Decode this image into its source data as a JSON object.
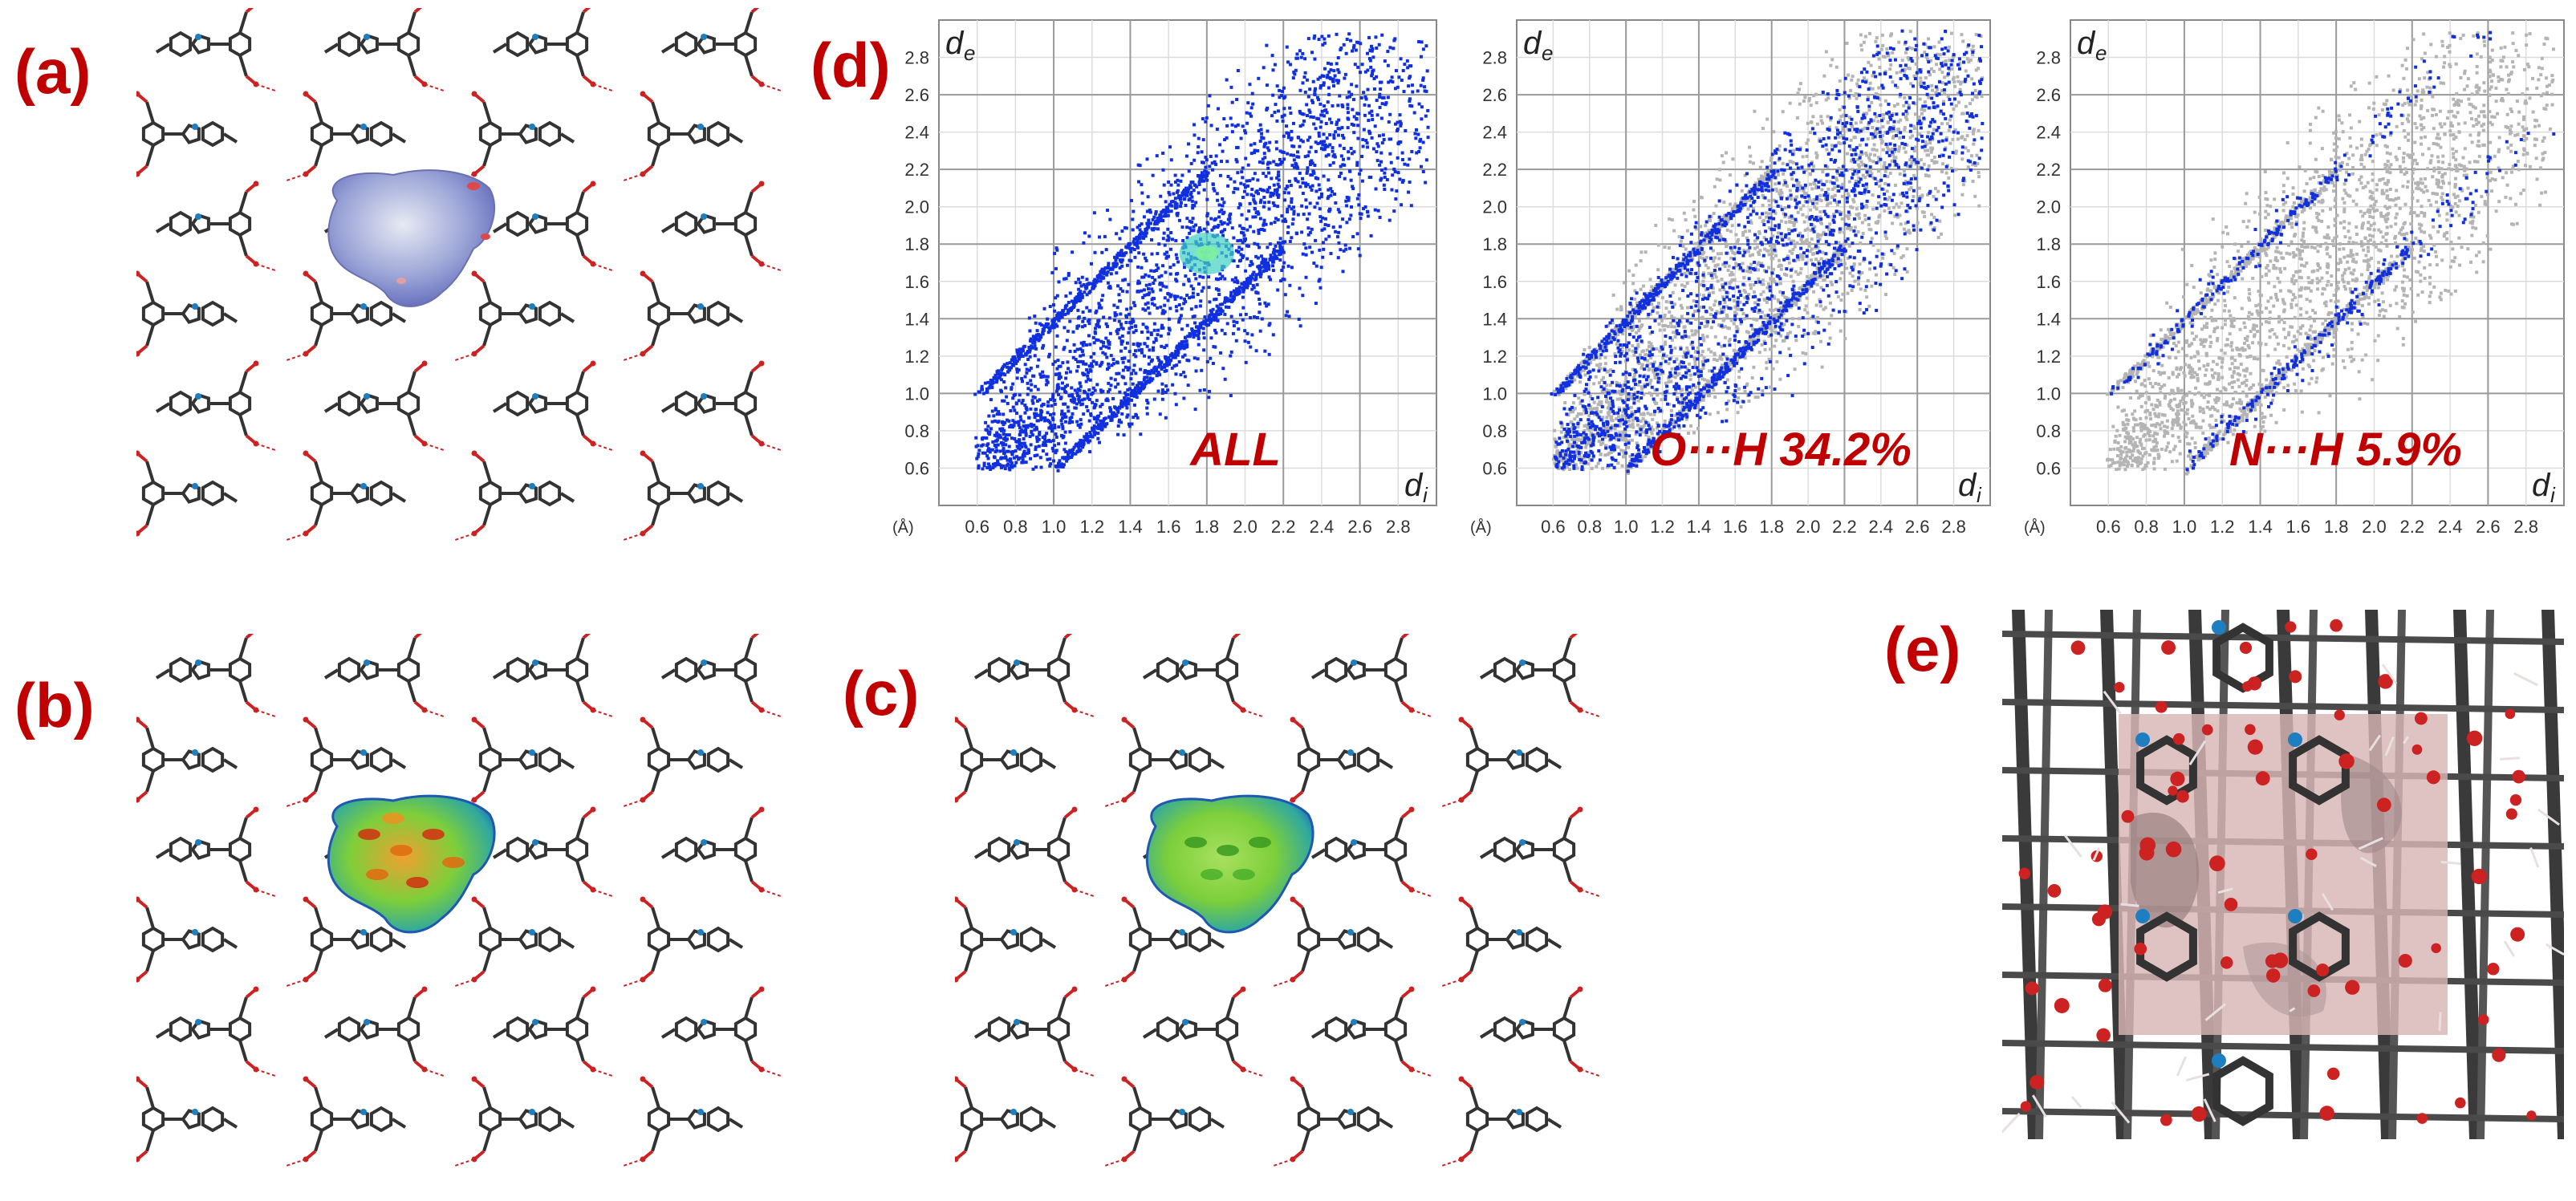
{
  "panels": {
    "a": "(a)",
    "b": "(b)",
    "c": "(c)",
    "d": "(d)",
    "e": "(e)"
  },
  "colors": {
    "label": "#c00000",
    "bond": "#333333",
    "oxygen": "#cc2222",
    "nitrogen": "#1e7fc0",
    "points_all": "#1030e0",
    "points_bg": "#b4b4b4",
    "cavity": "#d8b4b4"
  },
  "plots": [
    {
      "id": "all",
      "annotation": "ALL",
      "xlabel": "d",
      "xlabel_sub": "i",
      "ylabel": "d",
      "ylabel_sub": "e",
      "unit": "(Å)",
      "xticks": [
        "0.6",
        "0.8",
        "1.0",
        "1.2",
        "1.4",
        "1.6",
        "1.8",
        "2.0",
        "2.2",
        "2.4",
        "2.6",
        "2.8"
      ],
      "yticks": [
        "0.6",
        "0.8",
        "1.0",
        "1.2",
        "1.4",
        "1.6",
        "1.8",
        "2.0",
        "2.2",
        "2.4",
        "2.6",
        "2.8"
      ]
    },
    {
      "id": "oh",
      "annotation": "O···H 34.2%",
      "xlabel": "d",
      "xlabel_sub": "i",
      "ylabel": "d",
      "ylabel_sub": "e",
      "unit": "(Å)",
      "xticks": [
        "0.6",
        "0.8",
        "1.0",
        "1.2",
        "1.4",
        "1.6",
        "1.8",
        "2.0",
        "2.2",
        "2.4",
        "2.6",
        "2.8"
      ],
      "yticks": [
        "0.6",
        "0.8",
        "1.0",
        "1.2",
        "1.4",
        "1.6",
        "1.8",
        "2.0",
        "2.2",
        "2.4",
        "2.6",
        "2.8"
      ]
    },
    {
      "id": "nh",
      "annotation": "N···H 5.9%",
      "xlabel": "d",
      "xlabel_sub": "i",
      "ylabel": "d",
      "ylabel_sub": "e",
      "unit": "(Å)",
      "xticks": [
        "0.6",
        "0.8",
        "1.0",
        "1.2",
        "1.4",
        "1.6",
        "1.8",
        "2.0",
        "2.2",
        "2.4",
        "2.6",
        "2.8"
      ],
      "yticks": [
        "0.6",
        "0.8",
        "1.0",
        "1.2",
        "1.4",
        "1.6",
        "1.8",
        "2.0",
        "2.2",
        "2.4",
        "2.6",
        "2.8"
      ]
    }
  ],
  "chart_data": [
    {
      "type": "scatter",
      "title": "ALL",
      "xlabel": "di (Å)",
      "ylabel": "de (Å)",
      "xlim": [
        0.4,
        3.0
      ],
      "ylim": [
        0.4,
        3.0
      ],
      "percent": null
    },
    {
      "type": "scatter",
      "title": "O···H",
      "xlabel": "di (Å)",
      "ylabel": "de (Å)",
      "xlim": [
        0.4,
        3.0
      ],
      "ylim": [
        0.4,
        3.0
      ],
      "percent": 34.2
    },
    {
      "type": "scatter",
      "title": "N···H",
      "xlabel": "di (Å)",
      "ylabel": "de (Å)",
      "xlim": [
        0.4,
        3.0
      ],
      "ylim": [
        0.4,
        3.0
      ],
      "percent": 5.9
    }
  ]
}
